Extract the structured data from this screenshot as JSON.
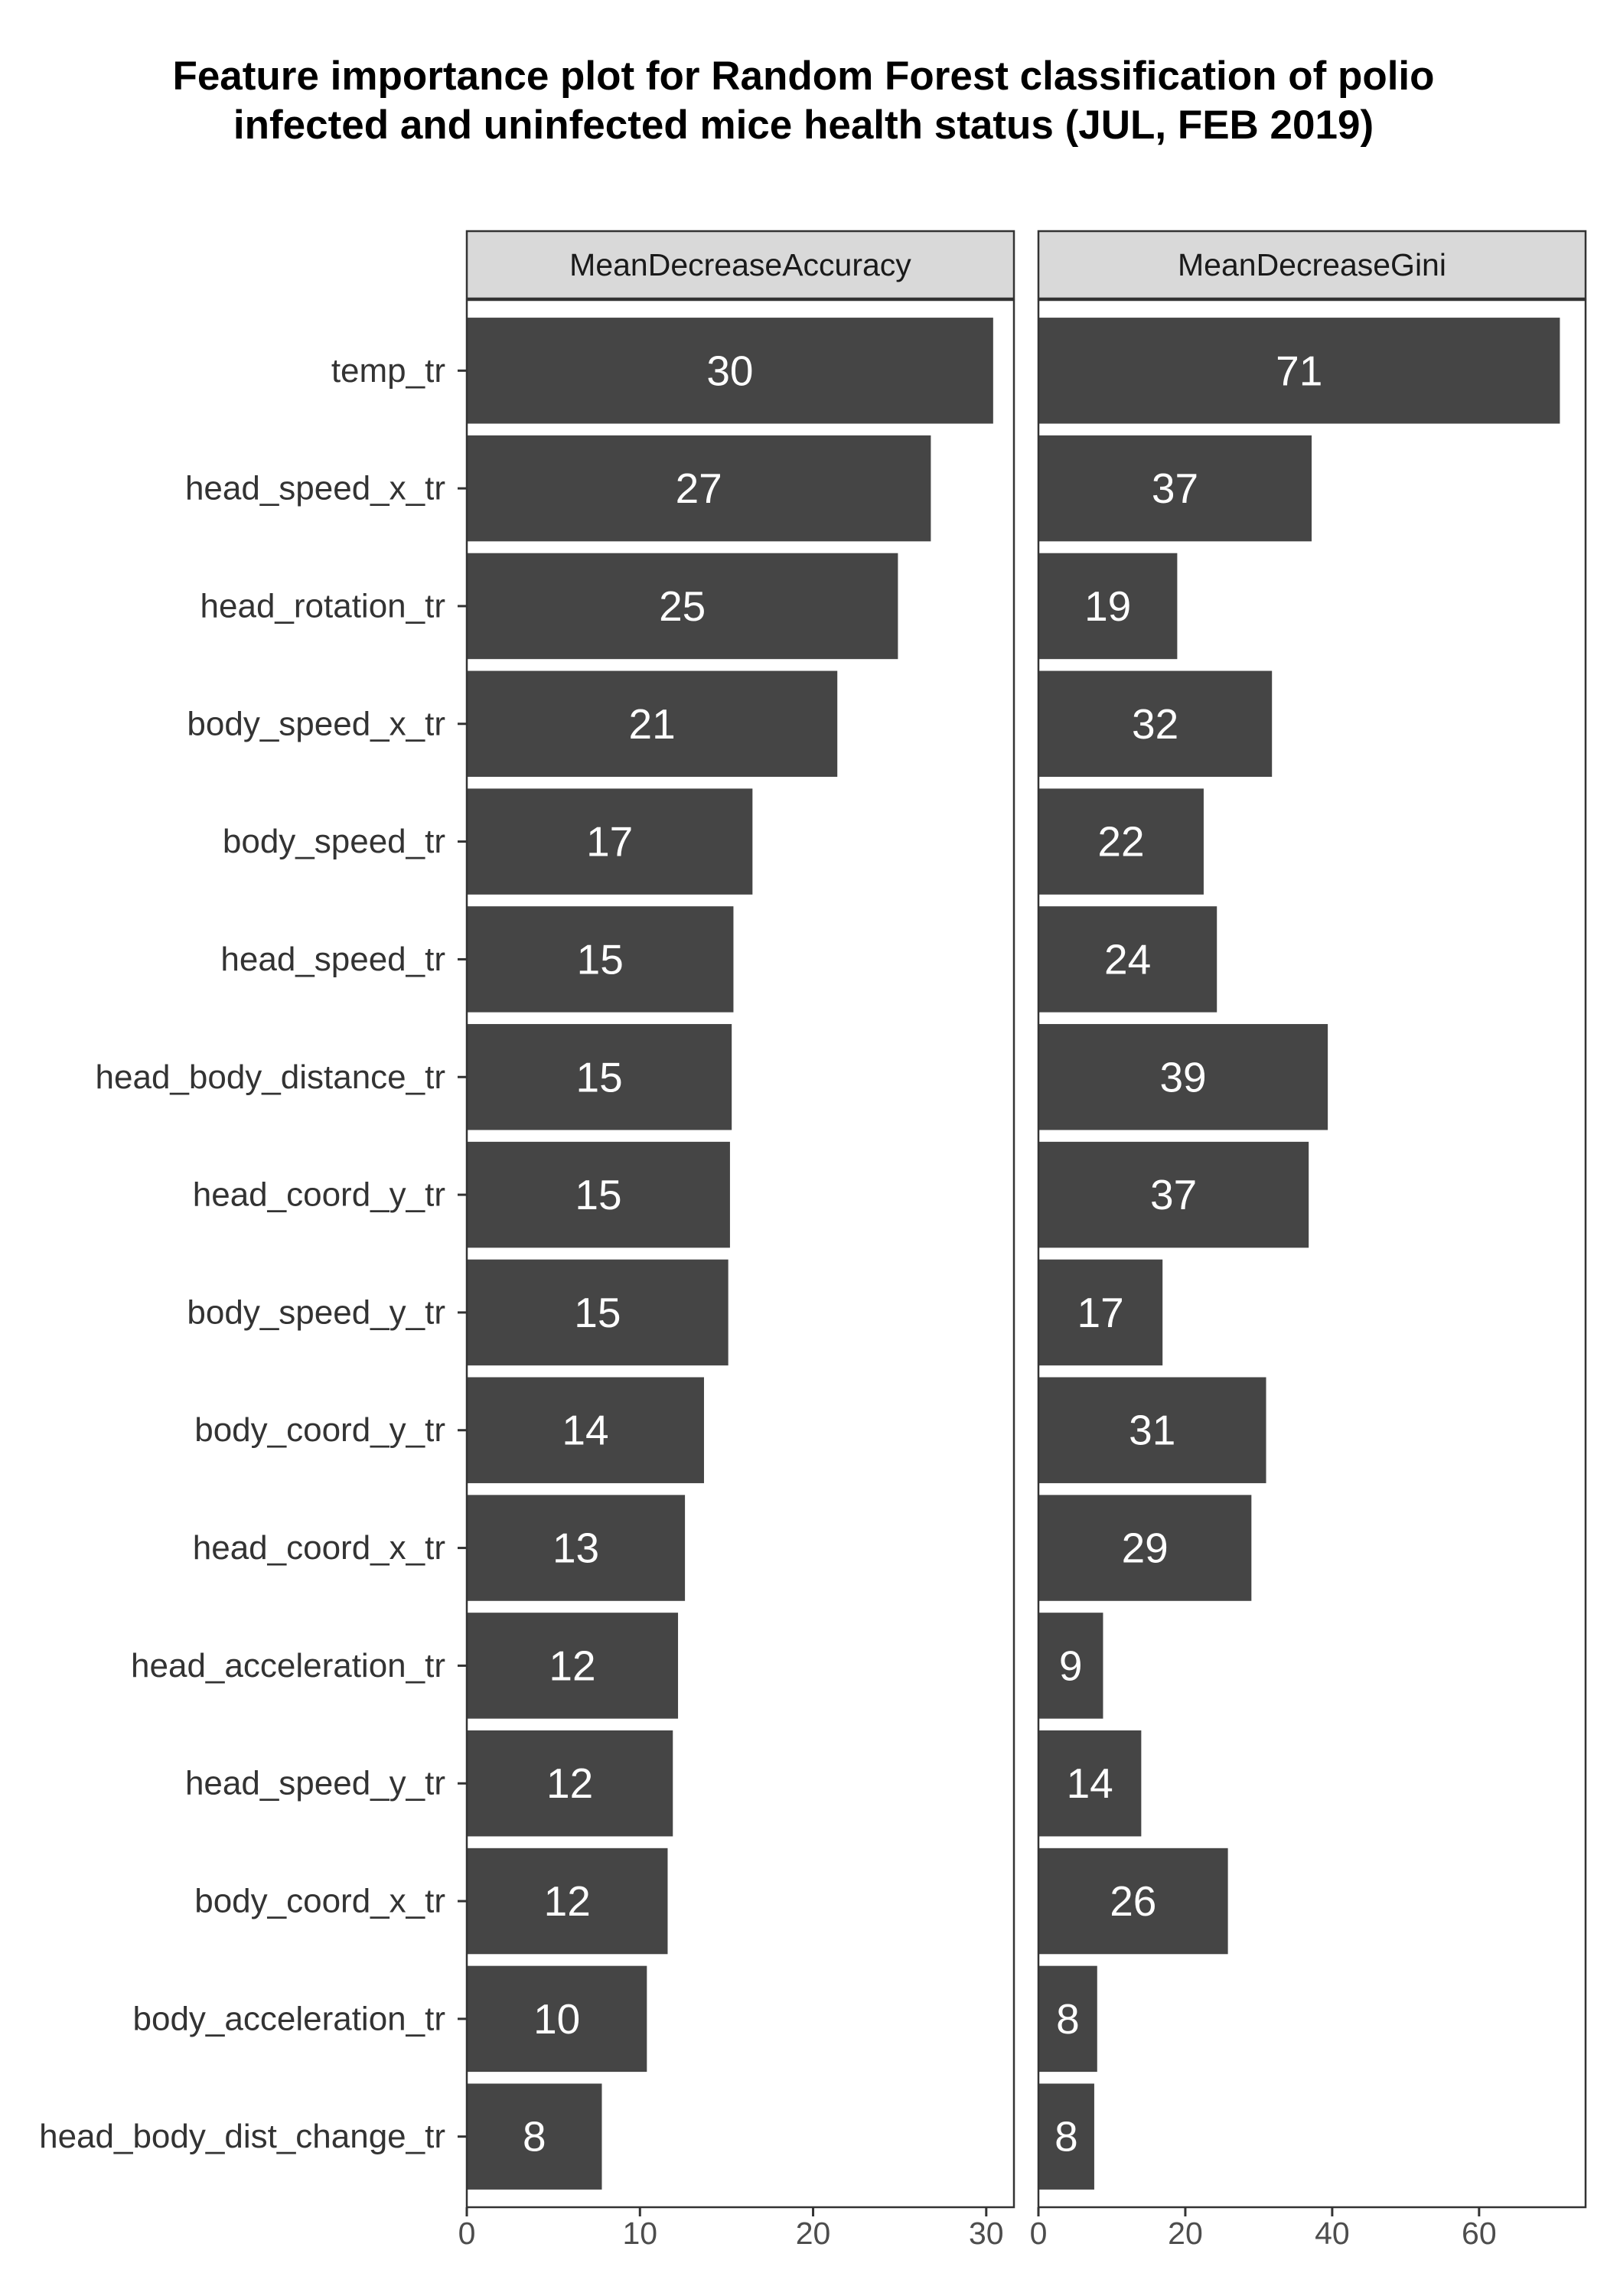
{
  "chart_data": {
    "type": "bar",
    "orientation": "horizontal",
    "title": "Feature importance plot for Random Forest classification of polio infected and uninfected mice health status (JUL, FEB 2019)",
    "title_lines": [
      "Feature importance plot for Random Forest classification of polio",
      "infected and uninfected mice health status (JUL, FEB 2019)"
    ],
    "bar_color": "#454545",
    "strip_color": "#d9d9d9",
    "categories": [
      "temp_tr",
      "head_speed_x_tr",
      "head_rotation_tr",
      "body_speed_x_tr",
      "body_speed_tr",
      "head_speed_tr",
      "head_body_distance_tr",
      "head_coord_y_tr",
      "body_speed_y_tr",
      "body_coord_y_tr",
      "head_coord_x_tr",
      "head_acceleration_tr",
      "head_speed_y_tr",
      "body_coord_x_tr",
      "body_acceleration_tr",
      "head_body_dist_change_tr"
    ],
    "panels": [
      {
        "name": "MeanDecreaseAccuracy",
        "values": [
          30.4,
          26.8,
          24.9,
          21.4,
          16.5,
          15.4,
          15.3,
          15.2,
          15.1,
          13.7,
          12.6,
          12.2,
          11.9,
          11.6,
          10.4,
          7.8
        ],
        "labels": [
          "30",
          "27",
          "25",
          "21",
          "17",
          "15",
          "15",
          "15",
          "15",
          "14",
          "13",
          "12",
          "12",
          "12",
          "10",
          "8"
        ],
        "xlim": [
          0,
          31.6
        ],
        "ticks": [
          0,
          10,
          20,
          30
        ]
      },
      {
        "name": "MeanDecreaseGini",
        "values": [
          71.0,
          37.2,
          18.9,
          31.8,
          22.5,
          24.3,
          39.4,
          36.8,
          16.9,
          31.0,
          29.0,
          8.8,
          14.0,
          25.8,
          8.0,
          7.6
        ],
        "labels": [
          "71",
          "37",
          "19",
          "32",
          "22",
          "24",
          "39",
          "37",
          "17",
          "31",
          "29",
          "9",
          "14",
          "26",
          "8",
          "8"
        ],
        "xlim": [
          0,
          74.5
        ],
        "ticks": [
          0,
          20,
          40,
          60
        ]
      }
    ]
  }
}
